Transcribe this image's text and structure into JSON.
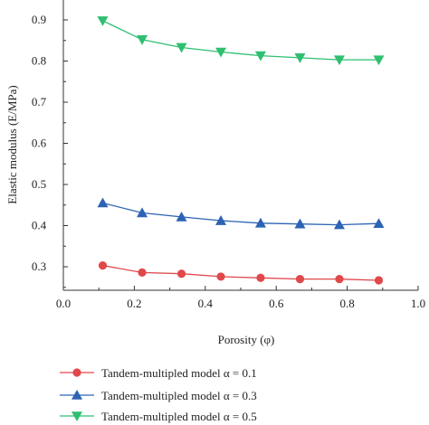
{
  "chart_data": {
    "type": "line",
    "xlabel": "Porosity (φ)",
    "ylabel": "Elastic modulus (E/MPa)",
    "xlim": [
      0.0,
      1.0
    ],
    "ylim": [
      0.25,
      0.95
    ],
    "xticks": [
      "0.0",
      "0.2",
      "0.4",
      "0.6",
      "0.8",
      "1.0"
    ],
    "yticks": [
      "0.3",
      "0.4",
      "0.5",
      "0.6",
      "0.7",
      "0.8",
      "0.9"
    ],
    "grid": false,
    "legend_position": "bottom",
    "x": [
      0.111,
      0.222,
      0.333,
      0.444,
      0.556,
      0.667,
      0.778,
      0.889
    ],
    "series": [
      {
        "name": "Tandem-multipled model α = 0.1",
        "color": "#e0484b",
        "marker": "circle",
        "values": [
          0.303,
          0.286,
          0.283,
          0.276,
          0.273,
          0.27,
          0.27,
          0.267
        ]
      },
      {
        "name": "Tandem-multipled model α = 0.3",
        "color": "#2d63b4",
        "marker": "triangle-up",
        "values": [
          0.455,
          0.431,
          0.421,
          0.412,
          0.406,
          0.404,
          0.402,
          0.405
        ]
      },
      {
        "name": "Tandem-multipled model α = 0.5",
        "color": "#2fbf71",
        "marker": "triangle-down",
        "values": [
          0.898,
          0.852,
          0.833,
          0.822,
          0.813,
          0.808,
          0.803,
          0.803
        ]
      }
    ]
  }
}
